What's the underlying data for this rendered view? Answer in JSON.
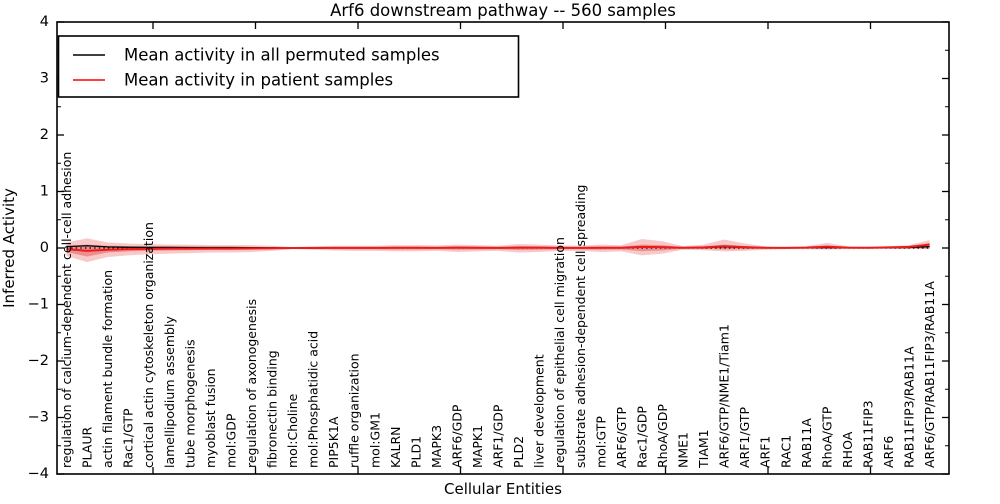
{
  "title": "Arf6 downstream pathway -- 560 samples",
  "legend": {
    "items": [
      {
        "label": "Mean activity in all permuted samples",
        "color": "#000000"
      },
      {
        "label": "Mean activity in patient samples",
        "color": "#ff0000"
      }
    ]
  },
  "colors": {
    "band": "#e23030",
    "band_outer_opacity": 0.26,
    "band_inner_opacity": 0.38,
    "zero_line": "#000000",
    "permuted_line": "#000000",
    "patient_line": "#eb1c1c"
  },
  "chart_data": {
    "type": "line",
    "title": "Arf6 downstream pathway -- 560 samples",
    "xlabel": "Cellular Entities",
    "ylabel": "Inferred Activity",
    "ylim": [
      -4,
      4
    ],
    "yticks": [
      {
        "v": 4,
        "label": "4"
      },
      {
        "v": 3,
        "label": "3"
      },
      {
        "v": 2,
        "label": "2"
      },
      {
        "v": 1,
        "label": "1"
      },
      {
        "v": 0,
        "label": "0"
      },
      {
        "v": -1,
        "label": "−1"
      },
      {
        "v": -2,
        "label": "−2"
      },
      {
        "v": -3,
        "label": "−3"
      },
      {
        "v": -4,
        "label": "−4"
      }
    ],
    "grid": false,
    "legend_position": "upper left",
    "zero_reference_line": 0,
    "categories": [
      "regulation of calcium-dependent cell-cell adhesion",
      "PLAUR",
      "actin filament bundle formation",
      "Rac1/GTP",
      "cortical actin cytoskeleton organization",
      "lamellipodium assembly",
      "tube morphogenesis",
      "myoblast fusion",
      "mol:GDP",
      "regulation of axonogenesis",
      "fibronectin binding",
      "mol:Choline",
      "mol:Phosphatidic acid",
      "PIP5K1A",
      "ruffle organization",
      "mol:GM1",
      "KALRN",
      "PLD1",
      "MAPK3",
      "ARF6/GDP",
      "MAPK1",
      "ARF1/GDP",
      "PLD2",
      "liver development",
      "regulation of epithelial cell migration",
      "substrate adhesion-dependent cell spreading",
      "mol:GTP",
      "ARF6/GTP",
      "Rac1/GDP",
      "RhoA/GDP",
      "NME1",
      "TIAM1",
      "ARF6/GTP/NME1/Tiam1",
      "ARF1/GTP",
      "ARF1",
      "RAC1",
      "RAB11A",
      "RhoA/GTP",
      "RHOA",
      "RAB11FIP3",
      "ARF6",
      "RAB11FIP3/RAB11A",
      "ARF6/GTP/RAB11FIP3/RAB11A"
    ],
    "series": [
      {
        "name": "Mean activity in all permuted samples",
        "color": "#000000",
        "values": [
          0.025,
          0.04,
          0.02,
          0.012,
          0.01,
          0.01,
          0.008,
          0.008,
          0.008,
          0.006,
          0.004,
          0.0,
          0.004,
          0.004,
          0.004,
          0.004,
          0.006,
          0.006,
          0.004,
          0.008,
          0.006,
          0.004,
          0.008,
          0.008,
          0.004,
          0.004,
          0.006,
          0.006,
          0.015,
          0.012,
          0.004,
          0.008,
          0.02,
          0.01,
          0.004,
          0.004,
          0.004,
          0.01,
          0.004,
          0.004,
          0.006,
          0.01,
          0.025
        ]
      },
      {
        "name": "Mean activity in patient samples",
        "color": "#ff0000",
        "values": [
          -0.02,
          -0.05,
          -0.03,
          -0.02,
          -0.015,
          -0.01,
          -0.01,
          -0.008,
          -0.008,
          -0.006,
          -0.004,
          0.0,
          0.0,
          0.002,
          0.002,
          0.002,
          0.004,
          0.004,
          0.002,
          0.006,
          0.004,
          0.002,
          0.006,
          0.006,
          0.002,
          0.002,
          0.004,
          0.004,
          0.02,
          0.015,
          0.004,
          0.012,
          0.03,
          0.015,
          0.004,
          0.002,
          0.006,
          0.025,
          0.006,
          0.004,
          0.01,
          0.02,
          0.06
        ]
      }
    ],
    "patient_band_outer_upper": [
      0.1,
      0.17,
      0.1,
      0.08,
      0.07,
      0.06,
      0.06,
      0.05,
      0.05,
      0.05,
      0.04,
      0.015,
      0.03,
      0.04,
      0.04,
      0.04,
      0.05,
      0.05,
      0.045,
      0.06,
      0.05,
      0.04,
      0.07,
      0.06,
      0.045,
      0.04,
      0.06,
      0.05,
      0.16,
      0.12,
      0.03,
      0.06,
      0.15,
      0.08,
      0.03,
      0.02,
      0.03,
      0.09,
      0.03,
      0.02,
      0.03,
      0.05,
      0.14
    ],
    "patient_band_outer_lower": [
      -0.14,
      -0.25,
      -0.16,
      -0.13,
      -0.11,
      -0.1,
      -0.09,
      -0.08,
      -0.08,
      -0.07,
      -0.05,
      -0.02,
      -0.03,
      -0.045,
      -0.05,
      -0.05,
      -0.06,
      -0.06,
      -0.05,
      -0.07,
      -0.06,
      -0.05,
      -0.08,
      -0.07,
      -0.05,
      -0.05,
      -0.07,
      -0.06,
      -0.13,
      -0.1,
      -0.03,
      -0.04,
      -0.06,
      -0.05,
      -0.03,
      -0.02,
      -0.02,
      -0.03,
      -0.02,
      -0.015,
      -0.015,
      -0.02,
      -0.02
    ],
    "patient_band_inner_upper": [
      0.04,
      0.06,
      0.04,
      0.035,
      0.03,
      0.028,
      0.025,
      0.022,
      0.022,
      0.02,
      0.018,
      0.007,
      0.013,
      0.018,
      0.018,
      0.018,
      0.022,
      0.022,
      0.02,
      0.026,
      0.022,
      0.018,
      0.03,
      0.026,
      0.02,
      0.018,
      0.026,
      0.022,
      0.06,
      0.05,
      0.013,
      0.026,
      0.06,
      0.035,
      0.013,
      0.009,
      0.013,
      0.04,
      0.013,
      0.009,
      0.013,
      0.022,
      0.09
    ],
    "patient_band_inner_lower": [
      -0.07,
      -0.15,
      -0.08,
      -0.06,
      -0.05,
      -0.045,
      -0.04,
      -0.036,
      -0.036,
      -0.03,
      -0.022,
      -0.009,
      -0.013,
      -0.02,
      -0.022,
      -0.022,
      -0.027,
      -0.027,
      -0.022,
      -0.03,
      -0.027,
      -0.022,
      -0.036,
      -0.03,
      -0.022,
      -0.022,
      -0.03,
      -0.027,
      -0.055,
      -0.045,
      -0.013,
      -0.018,
      -0.027,
      -0.022,
      -0.013,
      -0.009,
      -0.009,
      -0.013,
      -0.009,
      -0.007,
      -0.007,
      -0.009,
      -0.009
    ]
  }
}
